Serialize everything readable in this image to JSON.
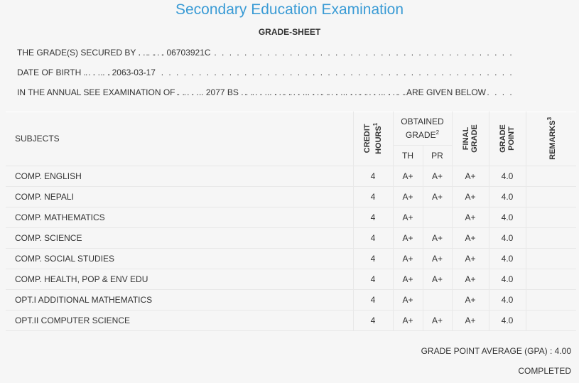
{
  "title": "Secondary Education Examination",
  "subtitle": "GRADE-SHEET",
  "info": [
    {
      "label": "THE GRADE(S) SECURED BY",
      "value": "06703921C"
    },
    {
      "label": "DATE OF BIRTH",
      "value": "2063-03-17"
    },
    {
      "label": "IN THE ANNUAL SEE EXAMINATION OF",
      "value": "2077 BS",
      "suffix": "ARE GIVEN BELOW"
    }
  ],
  "table": {
    "headers": {
      "subjects": "SUBJECTS",
      "credit_hours": {
        "text": "CREDIT HOURS",
        "note": "1"
      },
      "obtained_grade": {
        "text": "OBTAINED GRADE",
        "note": "2"
      },
      "th": "TH",
      "pr": "PR",
      "final_grade": "FINAL GRADE",
      "grade_point": "GRADE POINT",
      "remarks": {
        "text": "REMARKS",
        "note": "3"
      }
    },
    "rows": [
      [
        "COMP. ENGLISH",
        4,
        "A+",
        "A+",
        "A+",
        "4.0"
      ],
      [
        "COMP. NEPALI",
        4,
        "A+",
        "A+",
        "A+",
        "4.0"
      ],
      [
        "COMP. MATHEMATICS",
        4,
        "A+",
        null,
        "A+",
        "4.0"
      ],
      [
        "COMP. SCIENCE",
        4,
        "A+",
        "A+",
        "A+",
        "4.0"
      ],
      [
        "COMP. SOCIAL STUDIES",
        4,
        "A+",
        "A+",
        "A+",
        "4.0"
      ],
      [
        "COMP. HEALTH, POP & ENV EDU",
        4,
        "A+",
        "A+",
        "A+",
        "4.0"
      ],
      [
        "OPT.I ADDITIONAL MATHEMATICS",
        4,
        "A+",
        null,
        "A+",
        "4.0"
      ],
      [
        "OPT.II COMPUTER SCIENCE",
        4,
        "A+",
        "A+",
        "A+",
        "4.0"
      ]
    ]
  },
  "gpa": {
    "label": "GRADE POINT AVERAGE (GPA) :",
    "value": "4.00"
  },
  "status": "COMPLETED"
}
